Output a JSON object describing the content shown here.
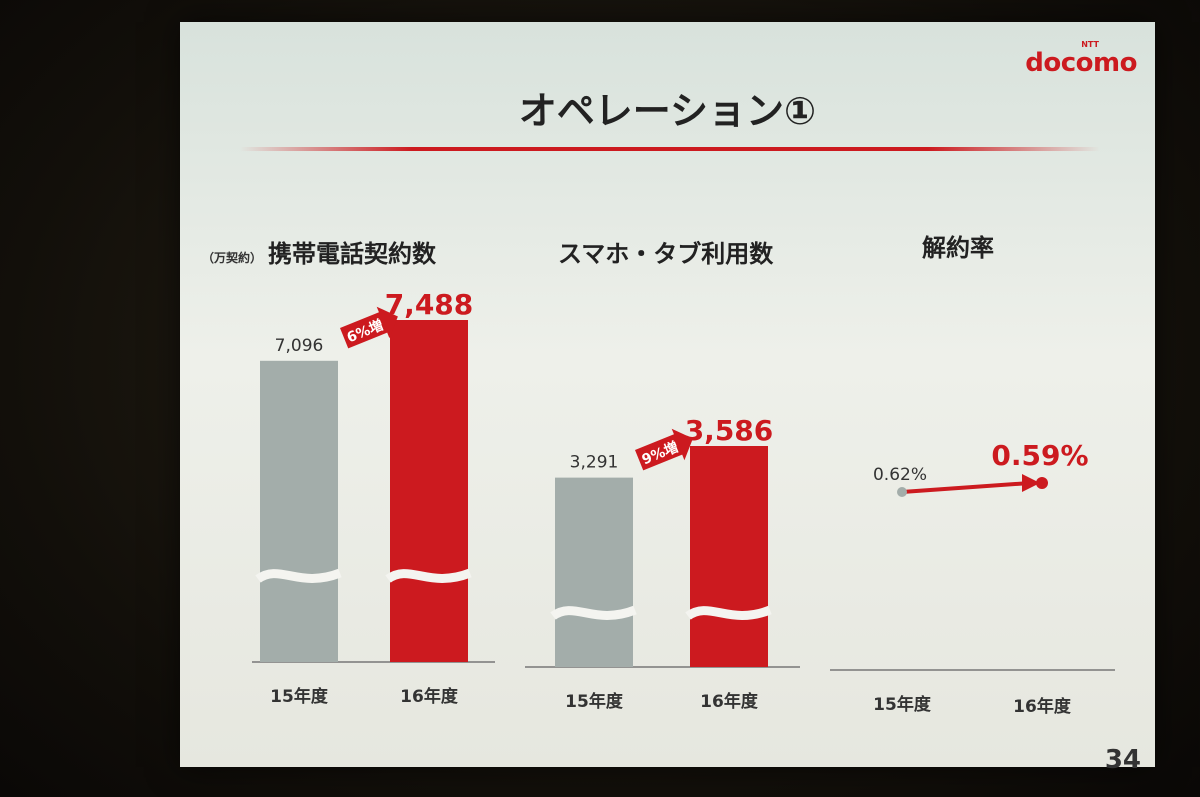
{
  "logo": {
    "brand": "docomo",
    "small": "NTT"
  },
  "title": "オペレーション①",
  "page_number": "34",
  "colors": {
    "red": "#cc1a1f",
    "gray": "#a3adaa"
  },
  "chart_data": [
    {
      "type": "bar",
      "title": "携帯電話契約数",
      "unit_label": "（万契約）",
      "categories": [
        "15年度",
        "16年度"
      ],
      "values": [
        7096,
        7488
      ],
      "value_labels": [
        "7,096",
        "7,488"
      ],
      "growth_label": "6%増",
      "axis_break": true
    },
    {
      "type": "bar",
      "title": "スマホ・タブ利用数",
      "categories": [
        "15年度",
        "16年度"
      ],
      "values": [
        3291,
        3586
      ],
      "value_labels": [
        "3,291",
        "3,586"
      ],
      "growth_label": "9%増",
      "axis_break": true
    },
    {
      "type": "line",
      "title": "解約率",
      "categories": [
        "15年度",
        "16年度"
      ],
      "values": [
        0.62,
        0.59
      ],
      "value_labels": [
        "0.62%",
        "0.59%"
      ]
    }
  ]
}
